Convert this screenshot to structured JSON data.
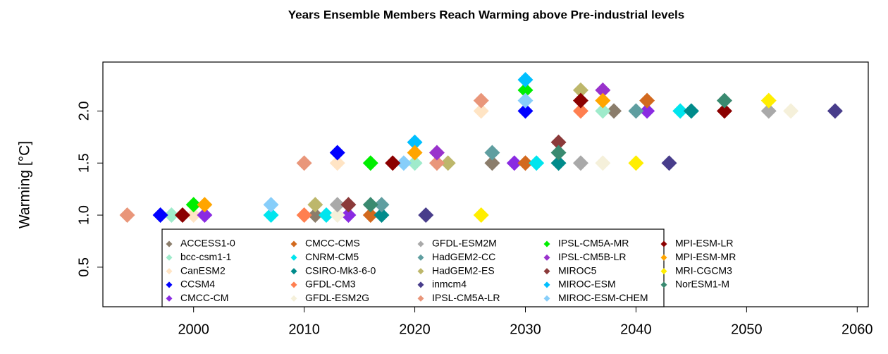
{
  "chart_data": {
    "type": "scatter",
    "title": "Years Ensemble Members Reach Warming above Pre-industrial levels",
    "y_label": "Warming [°C]",
    "xlim": [
      1991.8,
      2061
    ],
    "ylim": [
      0.12,
      2.47
    ],
    "xticks": [
      2000,
      2010,
      2020,
      2030,
      2040,
      2050,
      2060
    ],
    "yticks": [
      0.5,
      {
        "value": 1,
        "label": "1.0"
      },
      1.5,
      {
        "value": 2,
        "label": "2.0"
      }
    ],
    "legend": "bottom",
    "series": [
      {
        "name": "ACCESS1-0",
        "color": "#8B7D6B",
        "x": [
          2011,
          2027,
          2038
        ],
        "values": [
          1.0,
          1.5,
          2.0
        ]
      },
      {
        "name": "bcc-csm1-1",
        "color": "#9FEBCB",
        "x": [
          1998,
          2020,
          2037
        ],
        "values": [
          1.0,
          1.5,
          2.0
        ]
      },
      {
        "name": "CanESM2",
        "color": "#FFE4C4",
        "x": [
          2000,
          2013,
          2026
        ],
        "values": [
          1.0,
          1.5,
          2.0
        ]
      },
      {
        "name": "CCSM4",
        "color": "#0000FF",
        "x": [
          1997,
          2013,
          2030
        ],
        "values": [
          1.0,
          1.6,
          2.0
        ]
      },
      {
        "name": "CMCC-CM",
        "color": "#8A2BE2",
        "x": [
          2001,
          2014,
          2029,
          2041
        ],
        "values": [
          1.0,
          1.0,
          1.5,
          2.0
        ]
      },
      {
        "name": "CMCC-CMS",
        "color": "#D2691E",
        "x": [
          2016,
          2030,
          2041
        ],
        "values": [
          1.0,
          1.5,
          2.1
        ]
      },
      {
        "name": "CNRM-CM5",
        "color": "#00E5EE",
        "x": [
          2007,
          2012,
          2031,
          2044
        ],
        "values": [
          1.0,
          1.0,
          1.5,
          2.0
        ]
      },
      {
        "name": "CSIRO-Mk3-6-0",
        "color": "#008B8B",
        "x": [
          2017,
          2033,
          2045
        ],
        "values": [
          1.0,
          1.5,
          2.0
        ]
      },
      {
        "name": "GFDL-CM3",
        "color": "#FF7F50",
        "x": [
          2010,
          2035
        ],
        "values": [
          1.0,
          2.0
        ]
      },
      {
        "name": "GFDL-ESM2G",
        "color": "#F5F0DA",
        "x": [
          2013,
          2037,
          2054
        ],
        "values": [
          1.0,
          1.5,
          2.0
        ]
      },
      {
        "name": "GFDL-ESM2M",
        "color": "#A9A9A9",
        "x": [
          2013,
          2035,
          2052
        ],
        "values": [
          1.1,
          1.5,
          2.0
        ]
      },
      {
        "name": "HadGEM2-CC",
        "color": "#5F9EA0",
        "x": [
          2017,
          2027,
          2040
        ],
        "values": [
          1.1,
          1.6,
          2.0
        ]
      },
      {
        "name": "HadGEM2-ES",
        "color": "#BDB76B",
        "x": [
          2011,
          2023,
          2035
        ],
        "values": [
          1.1,
          1.5,
          2.2
        ]
      },
      {
        "name": "inmcm4",
        "color": "#483D8B",
        "x": [
          2021,
          2043,
          2058
        ],
        "values": [
          1.0,
          1.5,
          2.0
        ]
      },
      {
        "name": "IPSL-CM5A-LR",
        "color": "#E9967A",
        "x": [
          1994,
          2010,
          2022,
          2026
        ],
        "values": [
          1.0,
          1.5,
          1.5,
          2.1
        ]
      },
      {
        "name": "IPSL-CM5A-MR",
        "color": "#00EE00",
        "x": [
          2000,
          2016,
          2030
        ],
        "values": [
          1.1,
          1.5,
          2.2
        ]
      },
      {
        "name": "IPSL-CM5B-LR",
        "color": "#9932CC",
        "x": [
          2022,
          2037
        ],
        "values": [
          1.6,
          2.2
        ]
      },
      {
        "name": "MIROC5",
        "color": "#8B3A3A",
        "x": [
          2014,
          2033
        ],
        "values": [
          1.1,
          1.7
        ]
      },
      {
        "name": "MIROC-ESM",
        "color": "#00BFFF",
        "x": [
          2020,
          2030
        ],
        "values": [
          1.7,
          2.3
        ]
      },
      {
        "name": "MIROC-ESM-CHEM",
        "color": "#87CEFA",
        "x": [
          2007,
          2019,
          2030
        ],
        "values": [
          1.1,
          1.5,
          2.1
        ]
      },
      {
        "name": "MPI-ESM-LR",
        "color": "#8B0000",
        "x": [
          1999,
          2018,
          2035,
          2048
        ],
        "values": [
          1.0,
          1.5,
          2.1,
          2.0
        ]
      },
      {
        "name": "MPI-ESM-MR",
        "color": "#FFA500",
        "x": [
          2001,
          2020,
          2037
        ],
        "values": [
          1.1,
          1.6,
          2.1
        ]
      },
      {
        "name": "MRI-CGCM3",
        "color": "#FFEE00",
        "x": [
          2026,
          2040,
          2052
        ],
        "values": [
          1.0,
          1.5,
          2.1
        ]
      },
      {
        "name": "NorESM1-M",
        "color": "#3A8A70",
        "x": [
          2016,
          2033,
          2048
        ],
        "values": [
          1.1,
          1.6,
          2.1
        ]
      }
    ]
  }
}
